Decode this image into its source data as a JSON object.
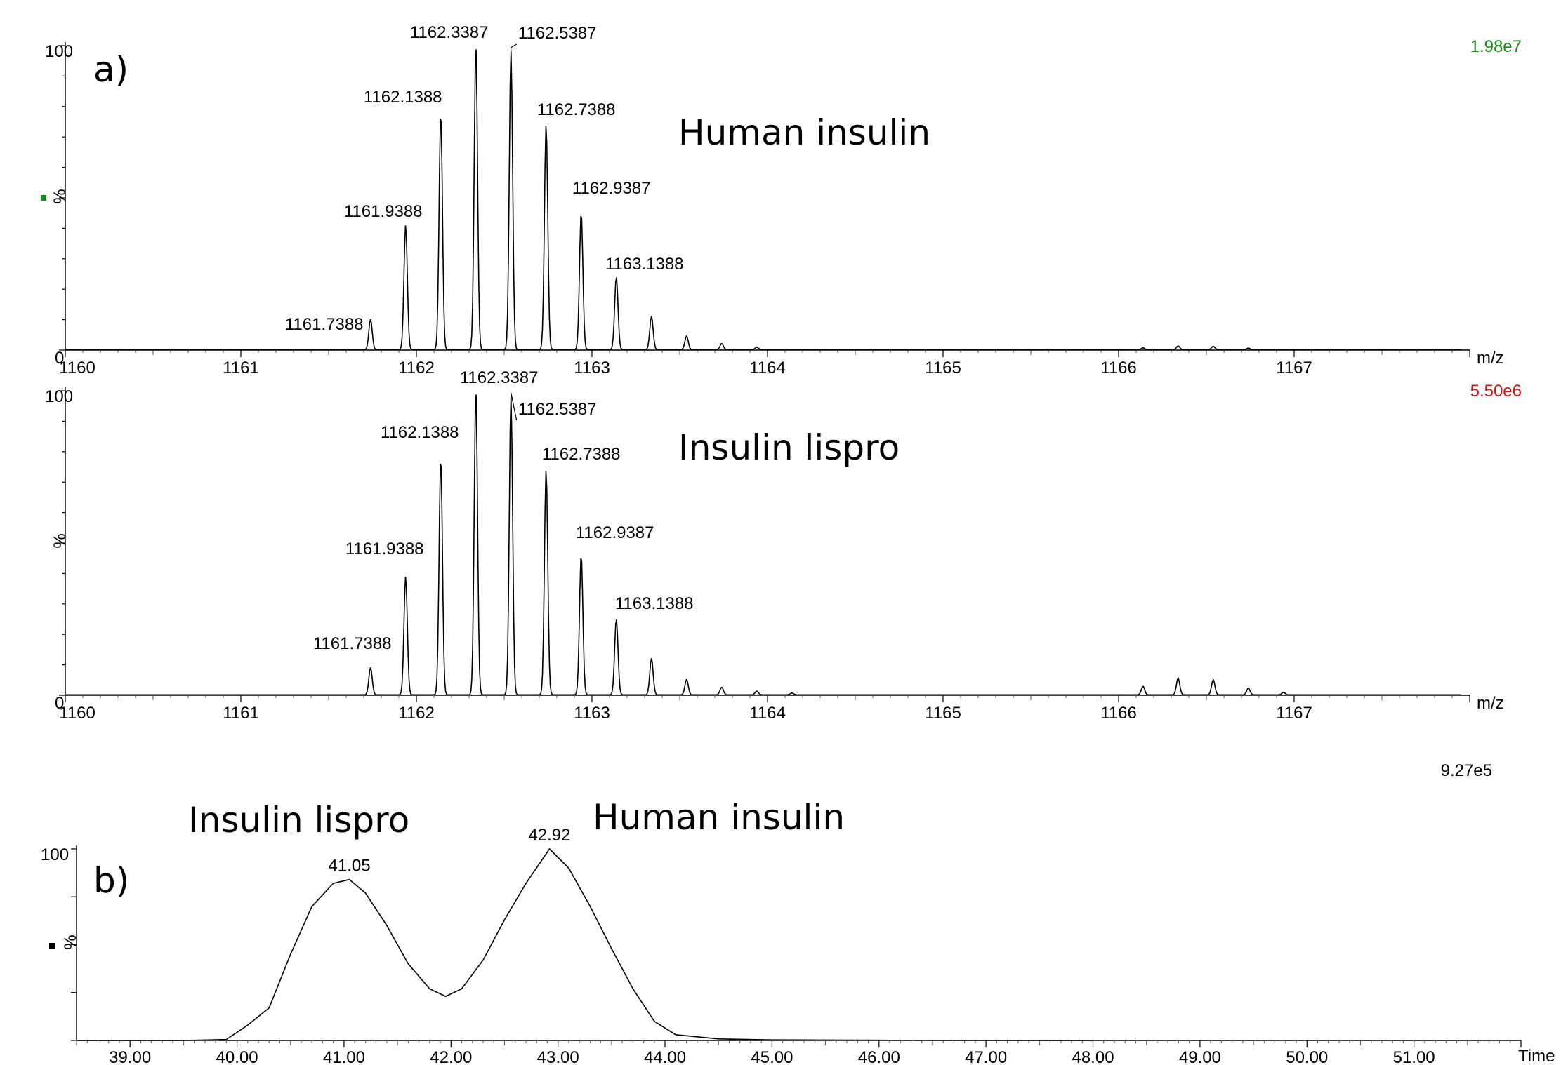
{
  "chart_data": [
    {
      "id": "spectrum-human",
      "type": "line",
      "panel_letter": "a)",
      "annotation": "Human insulin",
      "intensity": "1.98e7",
      "intensity_color": "#1a8c1a",
      "marker_color": "#1a8c1a",
      "xlabel": "m/z",
      "ylabel": "%",
      "xlim": [
        1160,
        1168
      ],
      "ylim": [
        0,
        100
      ],
      "xticks": [
        1160,
        1161,
        1162,
        1163,
        1164,
        1165,
        1166,
        1167
      ],
      "yticks": [
        0,
        100
      ],
      "peaks": [
        {
          "x": 1161.7388,
          "y": 10,
          "label": "1161.7388"
        },
        {
          "x": 1161.9388,
          "y": 41,
          "label": "1161.9388"
        },
        {
          "x": 1162.1388,
          "y": 78,
          "label": "1162.1388"
        },
        {
          "x": 1162.3387,
          "y": 100,
          "label": "1162.3387"
        },
        {
          "x": 1162.5387,
          "y": 98,
          "label": "1162.5387"
        },
        {
          "x": 1162.7388,
          "y": 74,
          "label": "1162.7388"
        },
        {
          "x": 1162.9387,
          "y": 45,
          "label": "1162.9387"
        },
        {
          "x": 1163.1388,
          "y": 24,
          "label": "1163.1388"
        },
        {
          "x": 1163.339,
          "y": 11,
          "label": ""
        },
        {
          "x": 1163.539,
          "y": 4.5,
          "label": ""
        },
        {
          "x": 1163.739,
          "y": 2,
          "label": ""
        },
        {
          "x": 1163.939,
          "y": 0.8,
          "label": ""
        },
        {
          "x": 1166.139,
          "y": 0.6,
          "label": ""
        },
        {
          "x": 1166.339,
          "y": 1.2,
          "label": ""
        },
        {
          "x": 1166.539,
          "y": 1.1,
          "label": ""
        },
        {
          "x": 1166.739,
          "y": 0.5,
          "label": ""
        }
      ]
    },
    {
      "id": "spectrum-lispro",
      "type": "line",
      "panel_letter": "",
      "annotation": "Insulin lispro",
      "intensity": "5.50e6",
      "intensity_color": "#e01010",
      "marker_color": "",
      "xlabel": "m/z",
      "ylabel": "%",
      "xlim": [
        1160,
        1168
      ],
      "ylim": [
        0,
        100
      ],
      "xticks": [
        1160,
        1161,
        1162,
        1163,
        1164,
        1165,
        1166,
        1167
      ],
      "yticks": [
        0,
        100
      ],
      "peaks": [
        {
          "x": 1161.7388,
          "y": 9,
          "label": "1161.7388"
        },
        {
          "x": 1161.9388,
          "y": 39,
          "label": "1161.9388"
        },
        {
          "x": 1162.1388,
          "y": 78,
          "label": "1162.1388"
        },
        {
          "x": 1162.3387,
          "y": 100,
          "label": "1162.3387"
        },
        {
          "x": 1162.5387,
          "y": 98,
          "label": "1162.5387"
        },
        {
          "x": 1162.7388,
          "y": 74,
          "label": "1162.7388"
        },
        {
          "x": 1162.9387,
          "y": 46,
          "label": "1162.9387"
        },
        {
          "x": 1163.1388,
          "y": 25,
          "label": "1163.1388"
        },
        {
          "x": 1163.339,
          "y": 12,
          "label": ""
        },
        {
          "x": 1163.539,
          "y": 5,
          "label": ""
        },
        {
          "x": 1163.739,
          "y": 2.5,
          "label": ""
        },
        {
          "x": 1163.939,
          "y": 1.2,
          "label": ""
        },
        {
          "x": 1164.139,
          "y": 0.6,
          "label": ""
        },
        {
          "x": 1166.139,
          "y": 2.8,
          "label": ""
        },
        {
          "x": 1166.339,
          "y": 5.5,
          "label": ""
        },
        {
          "x": 1166.539,
          "y": 5,
          "label": ""
        },
        {
          "x": 1166.739,
          "y": 2.2,
          "label": ""
        },
        {
          "x": 1166.939,
          "y": 0.8,
          "label": ""
        }
      ]
    },
    {
      "id": "chromatogram",
      "type": "line",
      "panel_letter": "b)",
      "intensity": "9.27e5",
      "intensity_color": "#000000",
      "marker_color": "#000000",
      "xlabel": "Time",
      "ylabel": "%",
      "xlim": [
        38.5,
        52.0
      ],
      "ylim": [
        0,
        100
      ],
      "xticks": [
        39.0,
        40.0,
        41.0,
        42.0,
        43.0,
        44.0,
        45.0,
        46.0,
        47.0,
        48.0,
        49.0,
        50.0,
        51.0
      ],
      "xtick_labels": [
        "39.00",
        "40.00",
        "41.00",
        "42.00",
        "43.00",
        "44.00",
        "45.00",
        "46.00",
        "47.00",
        "48.00",
        "49.00",
        "50.00",
        "51.00"
      ],
      "yticks": [
        0,
        100
      ],
      "peak_labels": [
        {
          "x": 41.05,
          "y": 84,
          "label": "41.05",
          "name": "Insulin lispro"
        },
        {
          "x": 42.92,
          "y": 100,
          "label": "42.92",
          "name": "Human insulin"
        }
      ],
      "x": [
        38.5,
        39.5,
        39.9,
        40.1,
        40.3,
        40.5,
        40.7,
        40.9,
        41.05,
        41.2,
        41.4,
        41.6,
        41.8,
        41.95,
        42.1,
        42.3,
        42.5,
        42.7,
        42.92,
        43.1,
        43.3,
        43.5,
        43.7,
        43.9,
        44.1,
        44.5,
        45.0,
        46.0,
        47.0,
        48.0
      ],
      "y": [
        0,
        0,
        0.5,
        8,
        17,
        45,
        70,
        82,
        84,
        77,
        60,
        40,
        27,
        23,
        27,
        42,
        63,
        82,
        100,
        90,
        70,
        48,
        27,
        10,
        3,
        0.8,
        0.3,
        0.1,
        0.05,
        0
      ]
    }
  ]
}
